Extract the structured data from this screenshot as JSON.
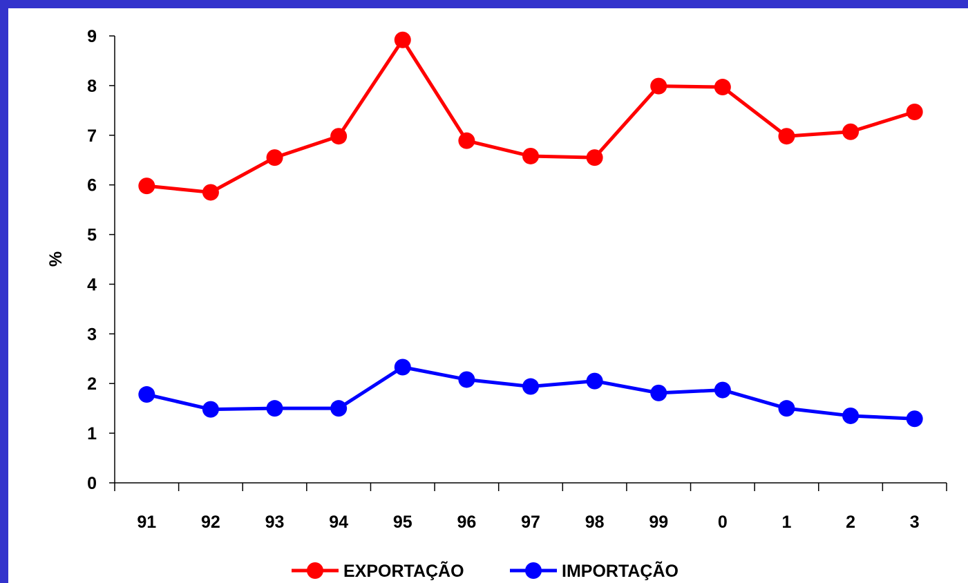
{
  "chart_data": {
    "type": "line",
    "ylabel": "%",
    "ylim": [
      0,
      9
    ],
    "yticks": [
      "0",
      "1",
      "2",
      "3",
      "4",
      "5",
      "6",
      "7",
      "8",
      "9"
    ],
    "categories": [
      "91",
      "92",
      "93",
      "94",
      "95",
      "96",
      "97",
      "98",
      "99",
      "0",
      "1",
      "2",
      "3"
    ],
    "series": [
      {
        "name": "EXPORTAÇÃO",
        "color": "#ff0000",
        "values": [
          5.98,
          5.85,
          6.55,
          6.98,
          8.92,
          6.89,
          6.58,
          6.55,
          7.99,
          7.97,
          6.98,
          7.07,
          7.47
        ]
      },
      {
        "name": "IMPORTAÇÃO",
        "color": "#0000ff",
        "values": [
          1.78,
          1.48,
          1.5,
          1.5,
          2.33,
          2.08,
          1.94,
          2.05,
          1.81,
          1.87,
          1.5,
          1.35,
          1.29
        ]
      }
    ],
    "legend_position": "bottom-center",
    "grid": false
  }
}
